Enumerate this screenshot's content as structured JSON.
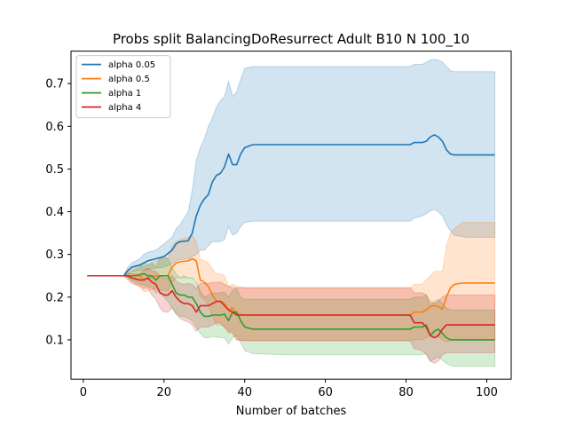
{
  "chart_data": {
    "type": "line",
    "title": "Probs split BalancingDoResurrect Adult B10 N 100_10",
    "xlabel": "Number of batches",
    "ylabel": "",
    "xlim": [
      -3.05,
      106.05
    ],
    "ylim": [
      0.008,
      0.776
    ],
    "xticks": [
      0,
      20,
      40,
      60,
      80,
      100
    ],
    "yticks": [
      0.1,
      0.2,
      0.3,
      0.4,
      0.5,
      0.6,
      0.7
    ],
    "xtick_labels": [
      "0",
      "20",
      "40",
      "60",
      "80",
      "100"
    ],
    "ytick_labels": [
      "0.1",
      "0.2",
      "0.3",
      "0.4",
      "0.5",
      "0.6",
      "0.7"
    ],
    "grid": false,
    "legend_position": "top-left",
    "band_opacity": 0.2,
    "series": [
      {
        "name": "alpha 0.05",
        "color": "#1f77b4",
        "x": [
          1,
          10,
          11,
          12,
          14,
          15,
          16,
          18,
          20,
          22,
          23,
          24,
          26,
          27,
          28,
          29,
          30,
          31,
          32,
          33,
          34,
          35,
          36,
          37,
          38,
          39,
          40,
          42,
          50,
          60,
          70,
          81,
          82,
          84,
          85,
          86,
          87,
          88,
          89,
          90,
          91,
          92,
          95,
          102
        ],
        "mean": [
          0.25,
          0.25,
          0.262,
          0.27,
          0.275,
          0.28,
          0.285,
          0.29,
          0.295,
          0.31,
          0.325,
          0.33,
          0.332,
          0.35,
          0.39,
          0.415,
          0.43,
          0.44,
          0.47,
          0.485,
          0.49,
          0.505,
          0.535,
          0.51,
          0.51,
          0.535,
          0.55,
          0.557,
          0.557,
          0.557,
          0.557,
          0.557,
          0.562,
          0.562,
          0.565,
          0.575,
          0.58,
          0.575,
          0.565,
          0.545,
          0.535,
          0.533,
          0.533,
          0.533
        ],
        "upper": [
          0.25,
          0.25,
          0.27,
          0.28,
          0.29,
          0.3,
          0.305,
          0.31,
          0.325,
          0.34,
          0.36,
          0.37,
          0.4,
          0.45,
          0.52,
          0.55,
          0.57,
          0.6,
          0.62,
          0.645,
          0.66,
          0.67,
          0.705,
          0.67,
          0.68,
          0.71,
          0.735,
          0.74,
          0.74,
          0.74,
          0.74,
          0.74,
          0.745,
          0.745,
          0.75,
          0.755,
          0.757,
          0.755,
          0.75,
          0.74,
          0.73,
          0.728,
          0.728,
          0.728
        ],
        "lower": [
          0.25,
          0.25,
          0.255,
          0.26,
          0.262,
          0.264,
          0.265,
          0.268,
          0.27,
          0.278,
          0.285,
          0.288,
          0.29,
          0.295,
          0.3,
          0.31,
          0.31,
          0.32,
          0.33,
          0.33,
          0.33,
          0.335,
          0.365,
          0.345,
          0.35,
          0.365,
          0.375,
          0.378,
          0.378,
          0.378,
          0.378,
          0.378,
          0.385,
          0.39,
          0.395,
          0.402,
          0.405,
          0.4,
          0.39,
          0.37,
          0.355,
          0.345,
          0.34,
          0.34
        ]
      },
      {
        "name": "alpha 0.5",
        "color": "#ff7f0e",
        "x": [
          1,
          10,
          11,
          12,
          13,
          14,
          15,
          16,
          18,
          19,
          20,
          21,
          22,
          23,
          24,
          26,
          27,
          28,
          29,
          30,
          31,
          32,
          33,
          34,
          35,
          36,
          37,
          38,
          40,
          50,
          60,
          70,
          80,
          81,
          82,
          84,
          85,
          86,
          87,
          88,
          89,
          90,
          91,
          92,
          94,
          102
        ],
        "mean": [
          0.25,
          0.25,
          0.25,
          0.25,
          0.252,
          0.25,
          0.24,
          0.245,
          0.25,
          0.25,
          0.25,
          0.25,
          0.27,
          0.28,
          0.283,
          0.285,
          0.29,
          0.285,
          0.24,
          0.235,
          0.225,
          0.205,
          0.19,
          0.19,
          0.185,
          0.17,
          0.175,
          0.16,
          0.158,
          0.158,
          0.158,
          0.158,
          0.158,
          0.158,
          0.165,
          0.165,
          0.17,
          0.178,
          0.18,
          0.178,
          0.172,
          0.2,
          0.222,
          0.23,
          0.233,
          0.233
        ],
        "upper": [
          0.25,
          0.25,
          0.26,
          0.27,
          0.275,
          0.275,
          0.27,
          0.275,
          0.285,
          0.29,
          0.29,
          0.29,
          0.32,
          0.33,
          0.335,
          0.34,
          0.345,
          0.33,
          0.29,
          0.285,
          0.28,
          0.265,
          0.255,
          0.255,
          0.25,
          0.225,
          0.23,
          0.225,
          0.222,
          0.222,
          0.222,
          0.222,
          0.222,
          0.222,
          0.23,
          0.23,
          0.24,
          0.25,
          0.26,
          0.26,
          0.26,
          0.32,
          0.35,
          0.36,
          0.375,
          0.375
        ],
        "lower": [
          0.25,
          0.25,
          0.24,
          0.232,
          0.228,
          0.225,
          0.212,
          0.215,
          0.22,
          0.218,
          0.215,
          0.215,
          0.235,
          0.245,
          0.245,
          0.245,
          0.245,
          0.24,
          0.2,
          0.195,
          0.18,
          0.155,
          0.135,
          0.135,
          0.13,
          0.115,
          0.125,
          0.1,
          0.098,
          0.098,
          0.098,
          0.098,
          0.098,
          0.098,
          0.1,
          0.1,
          0.105,
          0.11,
          0.11,
          0.108,
          0.1,
          0.095,
          0.098,
          0.1,
          0.1,
          0.1
        ]
      },
      {
        "name": "alpha 1",
        "color": "#2ca02c",
        "x": [
          1,
          10,
          11,
          13,
          14,
          15,
          16,
          17,
          18,
          19,
          20,
          21,
          22,
          23,
          24,
          25,
          26,
          27,
          28,
          29,
          30,
          31,
          32,
          34,
          35,
          36,
          37,
          38,
          39,
          40,
          42,
          50,
          60,
          70,
          80,
          81,
          82,
          84,
          85,
          86,
          87,
          88,
          89,
          90,
          91,
          92,
          94,
          102
        ],
        "mean": [
          0.25,
          0.25,
          0.25,
          0.25,
          0.252,
          0.255,
          0.25,
          0.25,
          0.24,
          0.25,
          0.25,
          0.25,
          0.23,
          0.21,
          0.205,
          0.205,
          0.2,
          0.2,
          0.185,
          0.165,
          0.155,
          0.155,
          0.158,
          0.158,
          0.16,
          0.145,
          0.165,
          0.165,
          0.145,
          0.13,
          0.125,
          0.125,
          0.125,
          0.125,
          0.125,
          0.125,
          0.13,
          0.13,
          0.135,
          0.11,
          0.12,
          0.125,
          0.115,
          0.105,
          0.1,
          0.1,
          0.1,
          0.1
        ],
        "upper": [
          0.25,
          0.25,
          0.255,
          0.265,
          0.27,
          0.28,
          0.275,
          0.28,
          0.27,
          0.29,
          0.295,
          0.29,
          0.27,
          0.255,
          0.245,
          0.25,
          0.245,
          0.245,
          0.235,
          0.215,
          0.2,
          0.205,
          0.21,
          0.21,
          0.212,
          0.2,
          0.215,
          0.22,
          0.2,
          0.195,
          0.195,
          0.195,
          0.195,
          0.195,
          0.195,
          0.195,
          0.2,
          0.2,
          0.205,
          0.18,
          0.19,
          0.195,
          0.185,
          0.175,
          0.17,
          0.17,
          0.17,
          0.17
        ],
        "lower": [
          0.25,
          0.25,
          0.245,
          0.235,
          0.23,
          0.228,
          0.225,
          0.222,
          0.21,
          0.215,
          0.2,
          0.19,
          0.175,
          0.16,
          0.155,
          0.155,
          0.15,
          0.145,
          0.13,
          0.115,
          0.105,
          0.105,
          0.108,
          0.105,
          0.105,
          0.09,
          0.105,
          0.11,
          0.095,
          0.075,
          0.068,
          0.065,
          0.065,
          0.065,
          0.065,
          0.065,
          0.065,
          0.065,
          0.068,
          0.05,
          0.055,
          0.06,
          0.052,
          0.045,
          0.04,
          0.038,
          0.038,
          0.038
        ]
      },
      {
        "name": "alpha 4",
        "color": "#d62728",
        "x": [
          1,
          10,
          11,
          12,
          14,
          15,
          16,
          17,
          18,
          19,
          20,
          21,
          22,
          23,
          24,
          25,
          26,
          27,
          28,
          29,
          30,
          31,
          32,
          33,
          34,
          36,
          37,
          38,
          40,
          50,
          60,
          70,
          80,
          81,
          82,
          84,
          85,
          86,
          87,
          88,
          89,
          90,
          91,
          92,
          94,
          102
        ],
        "mean": [
          0.25,
          0.25,
          0.25,
          0.245,
          0.24,
          0.24,
          0.245,
          0.235,
          0.23,
          0.21,
          0.205,
          0.205,
          0.215,
          0.2,
          0.19,
          0.185,
          0.185,
          0.18,
          0.165,
          0.18,
          0.18,
          0.18,
          0.185,
          0.19,
          0.19,
          0.17,
          0.165,
          0.158,
          0.158,
          0.158,
          0.158,
          0.158,
          0.158,
          0.158,
          0.14,
          0.14,
          0.13,
          0.11,
          0.105,
          0.11,
          0.125,
          0.135,
          0.135,
          0.135,
          0.135,
          0.135
        ],
        "upper": [
          0.25,
          0.25,
          0.255,
          0.255,
          0.255,
          0.262,
          0.268,
          0.262,
          0.26,
          0.25,
          0.245,
          0.245,
          0.25,
          0.238,
          0.232,
          0.23,
          0.232,
          0.23,
          0.22,
          0.232,
          0.232,
          0.232,
          0.235,
          0.235,
          0.235,
          0.225,
          0.222,
          0.222,
          0.222,
          0.222,
          0.222,
          0.222,
          0.222,
          0.222,
          0.21,
          0.21,
          0.205,
          0.19,
          0.185,
          0.19,
          0.2,
          0.205,
          0.205,
          0.205,
          0.205,
          0.205
        ],
        "lower": [
          0.25,
          0.25,
          0.245,
          0.235,
          0.225,
          0.22,
          0.222,
          0.205,
          0.195,
          0.175,
          0.165,
          0.165,
          0.175,
          0.162,
          0.15,
          0.145,
          0.142,
          0.135,
          0.12,
          0.13,
          0.13,
          0.13,
          0.135,
          0.14,
          0.14,
          0.12,
          0.115,
          0.1,
          0.098,
          0.098,
          0.098,
          0.098,
          0.098,
          0.098,
          0.08,
          0.075,
          0.065,
          0.05,
          0.045,
          0.05,
          0.065,
          0.07,
          0.07,
          0.07,
          0.07,
          0.07
        ]
      }
    ]
  }
}
